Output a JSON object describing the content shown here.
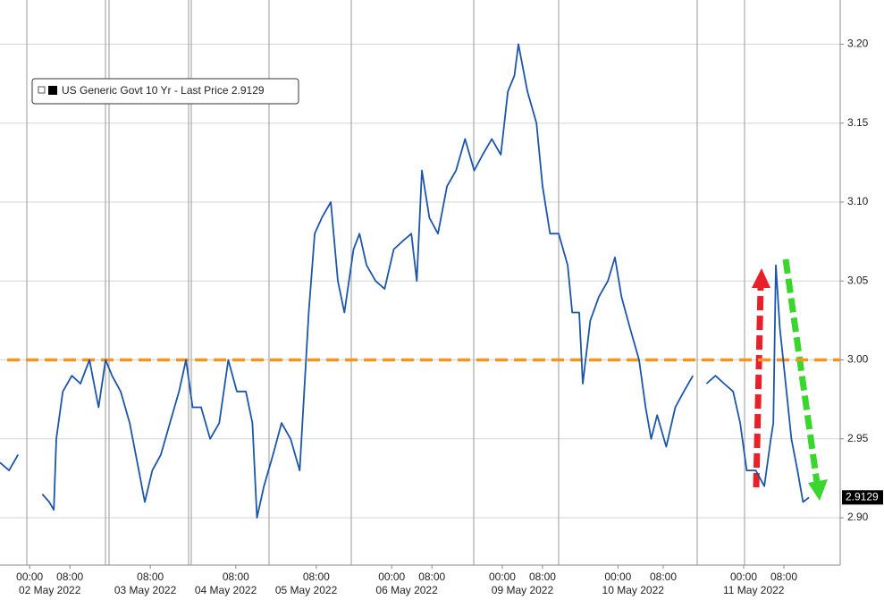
{
  "chart_data": {
    "type": "line",
    "series": [
      {
        "name": "US Generic Govt 10 Yr - Last Price",
        "color": "#1d56a8",
        "x": [
          -5.9,
          -4.1,
          -2.3,
          6.0,
          2.5,
          3.9,
          4.8,
          5.3,
          6.6,
          8.4,
          10.1,
          11.9,
          13.7,
          15.1,
          16.4,
          18.1,
          19.9,
          21.7,
          22.9,
          24.4,
          26.1,
          27.9,
          29.7,
          31.1,
          32.4,
          34.1,
          35.9,
          37.7,
          39.5,
          41.2,
          43.0,
          44.3,
          45.2,
          46.6,
          48.4,
          50.1,
          51.9,
          53.7,
          55.5,
          56.7,
          58.1,
          59.9,
          61.3,
          62.6,
          64.4,
          65.6,
          67.0,
          68.8,
          70.6,
          72.4,
          74.1,
          75.9,
          77.0,
          78.0,
          79.5,
          81.2,
          83.0,
          84.8,
          86.6,
          88.4,
          90.1,
          91.9,
          93.7,
          95.1,
          96.4,
          97.2,
          99.0,
          100.8,
          102.0,
          103.5,
          105.2,
          107.0,
          107.9,
          109.3,
          110.0,
          111.5,
          113.2,
          115.0,
          116.4,
          117.7,
          119.4,
          121.2,
          122.5,
          123.6,
          124.8,
          126.6,
          128.4,
          130.1,
          131.9,
          133.2,
          134.6,
          136.4,
          138.1,
          139.9,
          141.3,
          142.6,
          144.4,
          146.1,
          147.4,
          147.9,
          148.4,
          149.2,
          150.2,
          151.5,
          152.7,
          153.8,
          155.0
        ],
        "values": [
          2.935,
          2.93,
          2.94,
          null,
          2.915,
          2.91,
          2.905,
          2.95,
          2.98,
          2.99,
          2.985,
          3.0,
          2.97,
          3.0,
          2.99,
          2.98,
          2.96,
          2.93,
          2.91,
          2.93,
          2.94,
          2.96,
          2.98,
          3.0,
          2.97,
          2.97,
          2.95,
          2.96,
          3.0,
          2.98,
          2.98,
          2.96,
          2.9,
          2.92,
          2.94,
          2.96,
          2.95,
          2.93,
          3.03,
          3.08,
          3.09,
          3.1,
          3.05,
          3.03,
          3.07,
          3.08,
          3.06,
          3.05,
          3.045,
          3.07,
          3.075,
          3.08,
          3.05,
          3.12,
          3.09,
          3.08,
          3.11,
          3.12,
          3.14,
          3.12,
          3.13,
          3.14,
          3.13,
          3.17,
          3.18,
          3.2,
          3.17,
          3.15,
          3.11,
          3.08,
          3.08,
          3.06,
          3.03,
          3.03,
          2.985,
          3.025,
          3.04,
          3.05,
          3.065,
          3.04,
          3.02,
          3.0,
          2.97,
          2.95,
          2.965,
          2.945,
          2.97,
          2.98,
          2.99,
          null,
          2.985,
          2.99,
          2.985,
          2.98,
          2.96,
          2.93,
          2.93,
          2.92,
          2.95,
          2.96,
          3.06,
          3.02,
          2.99,
          2.95,
          2.93,
          2.91,
          2.9129
        ]
      }
    ],
    "xlim": [
      -5.9,
      161.2
    ],
    "xticks": [
      {
        "value": 0,
        "label": "00:00"
      },
      {
        "value": 8,
        "label": "08:00"
      },
      {
        "value": 24,
        "label": "08:00"
      },
      {
        "value": 41,
        "label": "08:00"
      },
      {
        "value": 57,
        "label": "08:00"
      },
      {
        "value": 72,
        "label": "00:00"
      },
      {
        "value": 80,
        "label": "08:00"
      },
      {
        "value": 94,
        "label": "00:00"
      },
      {
        "value": 102,
        "label": "08:00"
      },
      {
        "value": 117,
        "label": "00:00"
      },
      {
        "value": 126,
        "label": "08:00"
      },
      {
        "value": 142,
        "label": "00:00"
      },
      {
        "value": 150,
        "label": "08:00"
      }
    ],
    "date_labels": [
      {
        "value": 4,
        "label": "02 May 2022"
      },
      {
        "value": 23,
        "label": "03 May 2022"
      },
      {
        "value": 39,
        "label": "04 May 2022"
      },
      {
        "value": 55,
        "label": "05 May 2022"
      },
      {
        "value": 75,
        "label": "06 May 2022"
      },
      {
        "value": 98,
        "label": "09 May 2022"
      },
      {
        "value": 120,
        "label": "10 May 2022"
      },
      {
        "value": 144,
        "label": "11 May 2022"
      }
    ],
    "ylim": [
      2.87,
      3.228
    ],
    "yticks": [
      {
        "value": 2.9,
        "label": "2.90"
      },
      2.95,
      {
        "value": 3.0,
        "label": "3.00"
      },
      3.05,
      {
        "value": 3.1,
        "label": "3.10"
      },
      3.15,
      {
        "value": 3.2,
        "label": "3.20"
      }
    ],
    "grid": true,
    "reference_line": {
      "value": 3.0,
      "color": "#f7941d"
    }
  }
}
